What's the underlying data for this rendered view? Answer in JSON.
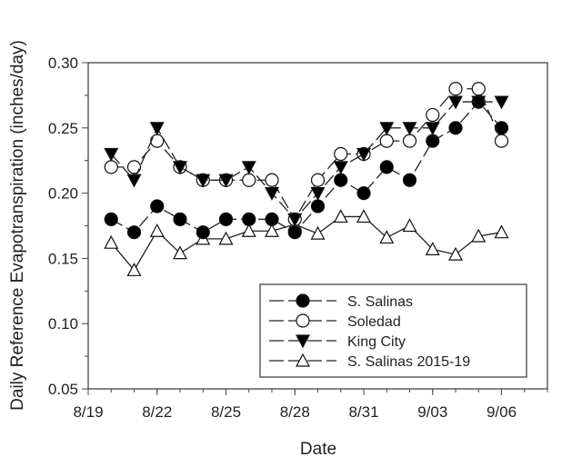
{
  "chart_data": {
    "type": "line",
    "title": "",
    "xlabel": "Date",
    "ylabel": "Daily Reference Evapotranspiration (inches/day)",
    "xlim": [
      "8/19",
      "9/08"
    ],
    "ylim": [
      0.05,
      0.3
    ],
    "x_ticks": [
      "8/19",
      "8/22",
      "8/25",
      "8/28",
      "8/31",
      "9/03",
      "9/06"
    ],
    "y_ticks": [
      "0.05",
      "0.10",
      "0.15",
      "0.20",
      "0.25",
      "0.30"
    ],
    "grid": false,
    "legend_position": "bottom-right",
    "x": [
      "8/20",
      "8/21",
      "8/22",
      "8/23",
      "8/24",
      "8/25",
      "8/26",
      "8/27",
      "8/28",
      "8/29",
      "8/30",
      "8/31",
      "9/01",
      "9/02",
      "9/03",
      "9/04",
      "9/05",
      "9/06"
    ],
    "series": [
      {
        "name": "S. Salinas",
        "marker": "filled-circle",
        "values": [
          0.18,
          0.17,
          0.19,
          0.18,
          0.17,
          0.18,
          0.18,
          0.18,
          0.17,
          0.19,
          0.21,
          0.2,
          0.22,
          0.21,
          0.24,
          0.25,
          0.27,
          0.25
        ]
      },
      {
        "name": "Soledad",
        "marker": "open-circle",
        "values": [
          0.22,
          0.22,
          0.24,
          0.22,
          0.21,
          0.21,
          0.21,
          0.21,
          0.18,
          0.21,
          0.23,
          0.23,
          0.24,
          0.24,
          0.26,
          0.28,
          0.28,
          0.24
        ]
      },
      {
        "name": "King City",
        "marker": "filled-triangle-down",
        "values": [
          0.23,
          0.21,
          0.25,
          0.22,
          0.21,
          0.21,
          0.22,
          0.2,
          0.18,
          0.2,
          0.22,
          0.23,
          0.25,
          0.25,
          0.25,
          0.27,
          0.27,
          0.27
        ]
      },
      {
        "name": "S. Salinas 2015-19",
        "marker": "open-triangle-up",
        "values": [
          0.162,
          0.141,
          0.171,
          0.154,
          0.165,
          0.165,
          0.171,
          0.171,
          0.176,
          0.169,
          0.182,
          0.182,
          0.166,
          0.175,
          0.157,
          0.153,
          0.167,
          0.17
        ]
      }
    ]
  }
}
